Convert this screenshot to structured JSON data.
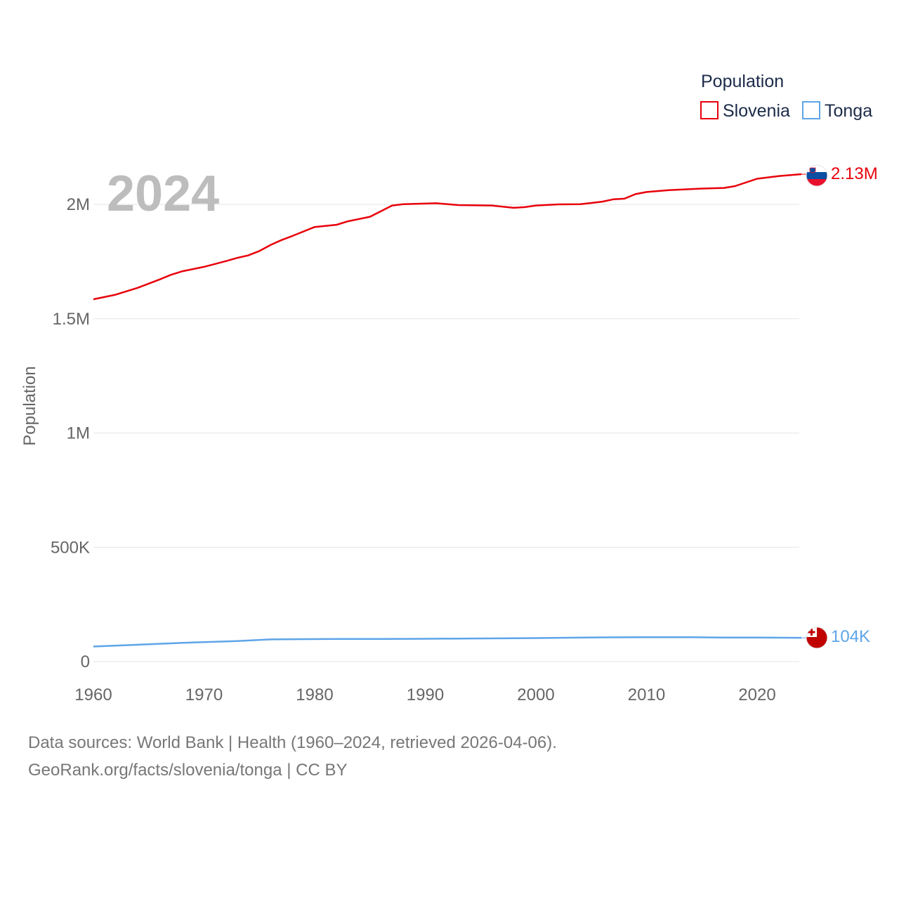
{
  "chart_data": {
    "type": "line",
    "title": "Population",
    "ylabel": "Population",
    "xlabel": "",
    "year_label": "2024",
    "xlim": [
      1960,
      2024
    ],
    "ylim": [
      0,
      2200000
    ],
    "x_ticks": [
      {
        "value": 1960,
        "label": "1960"
      },
      {
        "value": 1970,
        "label": "1970"
      },
      {
        "value": 1980,
        "label": "1980"
      },
      {
        "value": 1990,
        "label": "1990"
      },
      {
        "value": 2000,
        "label": "2000"
      },
      {
        "value": 2010,
        "label": "2010"
      },
      {
        "value": 2020,
        "label": "2020"
      }
    ],
    "y_ticks": [
      {
        "value": 0,
        "label": "0"
      },
      {
        "value": 500000,
        "label": "500K"
      },
      {
        "value": 1000000,
        "label": "1M"
      },
      {
        "value": 1500000,
        "label": "1.5M"
      },
      {
        "value": 2000000,
        "label": "2M"
      }
    ],
    "legend": {
      "title": "Population",
      "position": "top-right"
    },
    "series": [
      {
        "name": "Slovenia",
        "color": "#e8000b",
        "end_label": "2.13M",
        "flag": "slovenia-flag",
        "x": [
          1960,
          1962,
          1964,
          1966,
          1967,
          1968,
          1970,
          1972,
          1973,
          1974,
          1975,
          1976,
          1977,
          1978,
          1980,
          1982,
          1983,
          1985,
          1987,
          1988,
          1991,
          1993,
          1996,
          1998,
          1999,
          2000,
          2002,
          2004,
          2005,
          2006,
          2007,
          2008,
          2009,
          2010,
          2012,
          2015,
          2017,
          2018,
          2020,
          2022,
          2024
        ],
        "values": [
          1585000,
          1605000,
          1635000,
          1672000,
          1692000,
          1707000,
          1727000,
          1752000,
          1766000,
          1777000,
          1796000,
          1822000,
          1844000,
          1862000,
          1901000,
          1911000,
          1926000,
          1946000,
          1995000,
          2001000,
          2005000,
          1997000,
          1995000,
          1985000,
          1988000,
          1995000,
          2000000,
          2001000,
          2006000,
          2012000,
          2022000,
          2025000,
          2045000,
          2054000,
          2062000,
          2069000,
          2072000,
          2080000,
          2112000,
          2124000,
          2132000
        ]
      },
      {
        "name": "Tonga",
        "color": "#5ea5e8",
        "end_label": "104K",
        "flag": "tonga-flag",
        "x": [
          1960,
          1963,
          1966,
          1969,
          1973,
          1976,
          1978,
          1982,
          1986,
          1990,
          1994,
          1998,
          2002,
          2006,
          2010,
          2014,
          2017,
          2020,
          2024
        ],
        "values": [
          66000,
          72000,
          78000,
          84000,
          90000,
          97000,
          98000,
          99000,
          99000,
          100000,
          101000,
          102000,
          104000,
          106000,
          107000,
          107000,
          105000,
          105000,
          104000
        ]
      }
    ]
  },
  "footer": {
    "line1": "Data sources: World Bank | Health (1960–2024, retrieved 2026-04-06).",
    "line2": "GeoRank.org/facts/slovenia/tonga | CC BY"
  }
}
